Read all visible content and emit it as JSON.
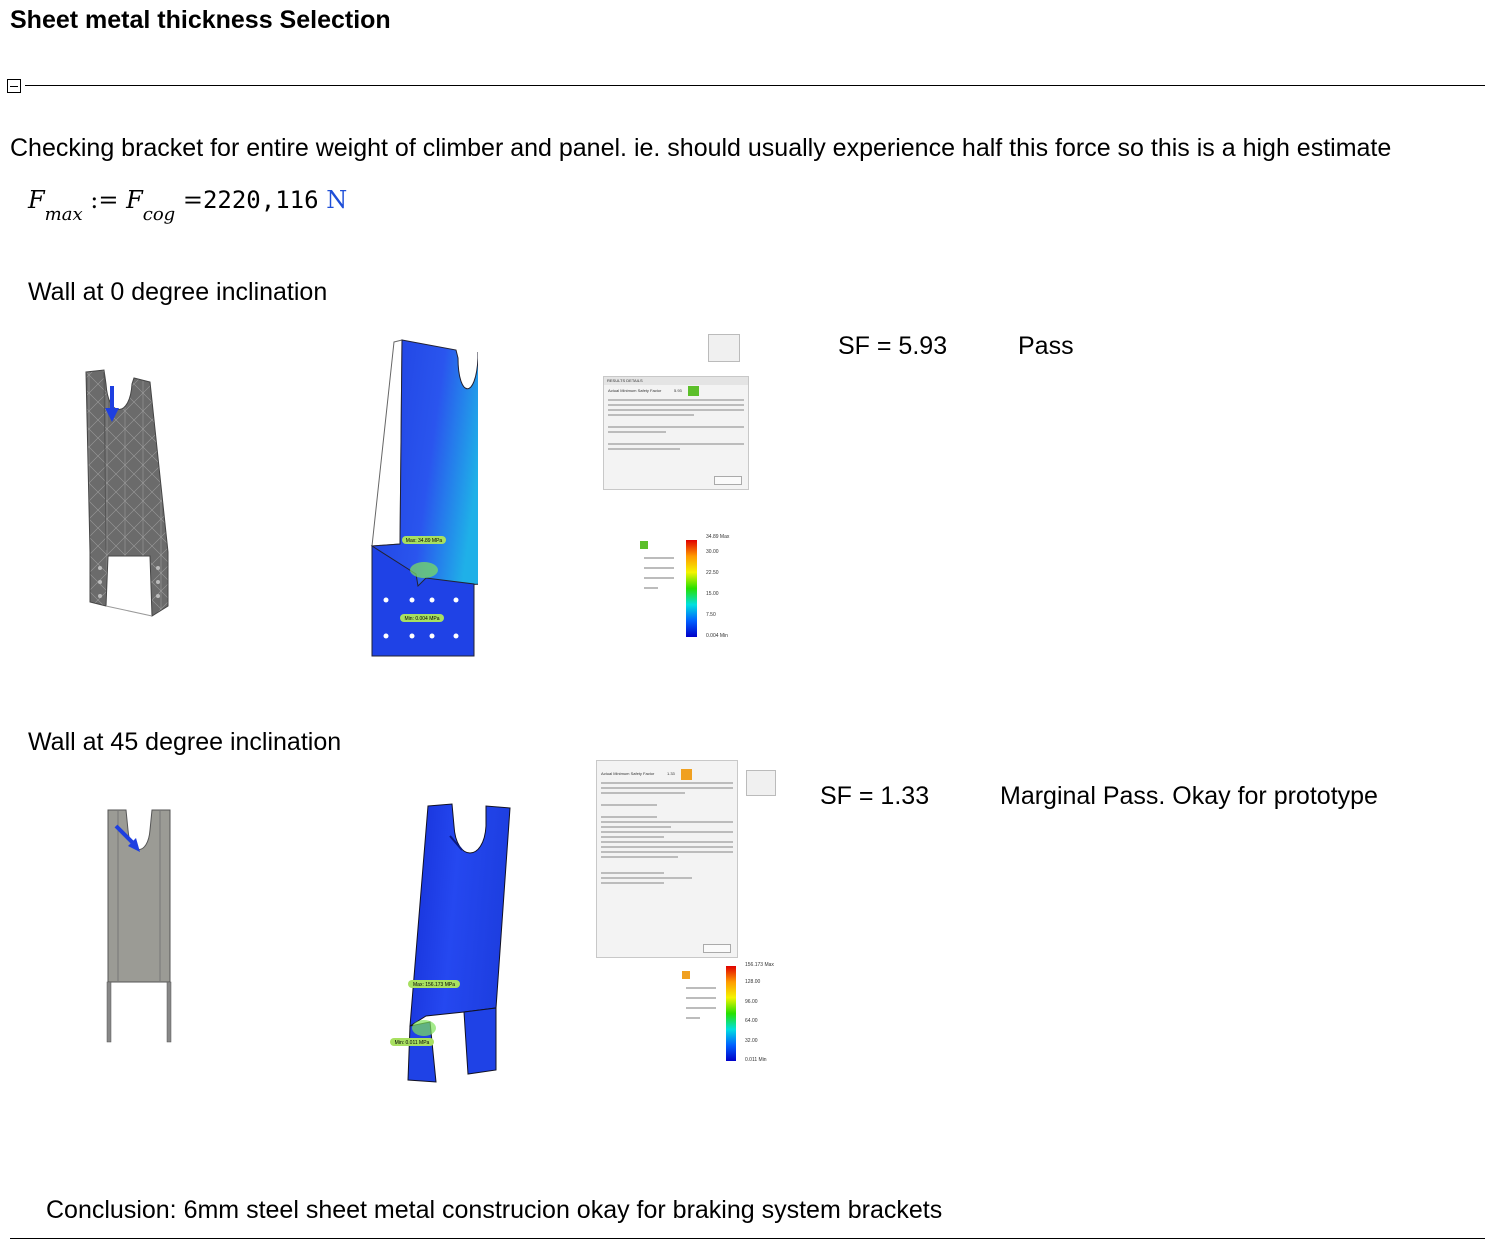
{
  "title": "Sheet metal thickness Selection",
  "intro": "Checking bracket for entire weight of climber and panel. ie. should usually experience half this force so this is a high estimate",
  "formula": {
    "lhs_var": "F",
    "lhs_sub": "max",
    "assign": ":=",
    "rhs_var": "F",
    "rhs_sub": "cog",
    "equals": "=",
    "value": "2220,116",
    "unit": "N"
  },
  "case1": {
    "heading": "Wall at 0 degree inclination",
    "sf": "SF = 5.93",
    "result": "Pass",
    "legend_ticks": [
      "34.89 Max",
      "30.00",
      "22.50",
      "15.00",
      "7.50",
      "0.004 Min"
    ],
    "max_label": "Max: 34.89 MPa",
    "min_label": "Min: 0.004 MPa",
    "panel_factor": "5.93"
  },
  "case2": {
    "heading": "Wall at 45 degree inclination",
    "sf": "SF = 1.33",
    "result": "Marginal Pass. Okay for prototype",
    "legend_ticks": [
      "156.173 Max",
      "128.00",
      "96.00",
      "64.00",
      "32.00",
      "0.011 Min"
    ],
    "max_label": "Max: 156.173 MPa",
    "min_label": "Min: 0.011 MPa",
    "panel_factor": "1.33"
  },
  "conclusion": "Conclusion: 6mm steel sheet metal construcion okay for braking system brackets",
  "colors": {
    "unit_blue": "#1f4fd8",
    "stress_blue": "#1e3fe0",
    "mesh_gray": "#6b6b6b",
    "pass_green": "#5cbf2a",
    "warn_orange": "#f0a020"
  }
}
